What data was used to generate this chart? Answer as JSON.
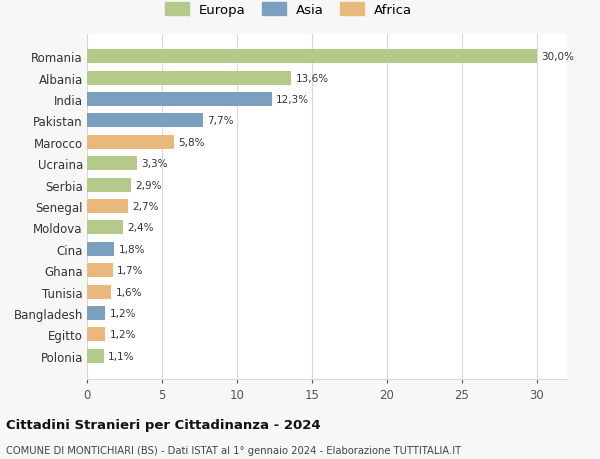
{
  "countries": [
    "Romania",
    "Albania",
    "India",
    "Pakistan",
    "Marocco",
    "Ucraina",
    "Serbia",
    "Senegal",
    "Moldova",
    "Cina",
    "Ghana",
    "Tunisia",
    "Bangladesh",
    "Egitto",
    "Polonia"
  ],
  "values": [
    30.0,
    13.6,
    12.3,
    7.7,
    5.8,
    3.3,
    2.9,
    2.7,
    2.4,
    1.8,
    1.7,
    1.6,
    1.2,
    1.2,
    1.1
  ],
  "labels": [
    "30,0%",
    "13,6%",
    "12,3%",
    "7,7%",
    "5,8%",
    "3,3%",
    "2,9%",
    "2,7%",
    "2,4%",
    "1,8%",
    "1,7%",
    "1,6%",
    "1,2%",
    "1,2%",
    "1,1%"
  ],
  "continents": [
    "Europa",
    "Europa",
    "Asia",
    "Asia",
    "Africa",
    "Europa",
    "Europa",
    "Africa",
    "Europa",
    "Asia",
    "Africa",
    "Africa",
    "Asia",
    "Africa",
    "Europa"
  ],
  "colors": {
    "Europa": "#b5c98a",
    "Asia": "#7b9fbe",
    "Africa": "#e8b87c"
  },
  "title": "Cittadini Stranieri per Cittadinanza - 2024",
  "subtitle": "COMUNE DI MONTICHIARI (BS) - Dati ISTAT al 1° gennaio 2024 - Elaborazione TUTTITALIA.IT",
  "xlim": [
    0,
    32
  ],
  "xticks": [
    0,
    5,
    10,
    15,
    20,
    25,
    30
  ],
  "background_color": "#f7f7f7",
  "bar_background": "#ffffff",
  "grid_color": "#d8d8d8"
}
